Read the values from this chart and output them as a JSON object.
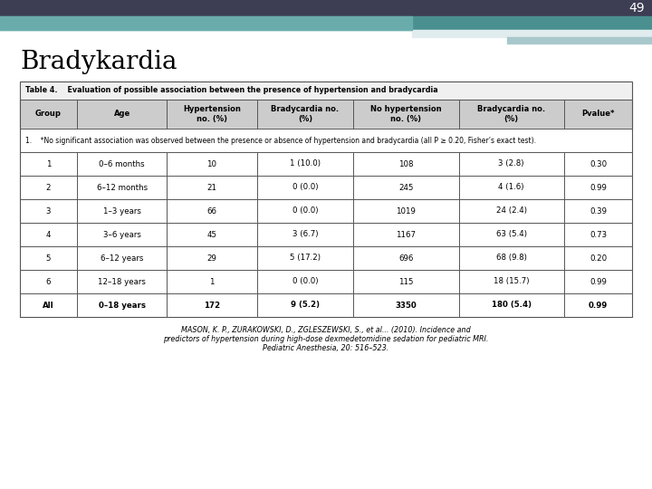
{
  "page_number": "49",
  "title": "Bradykardia",
  "table_title": "Table 4.    Evaluation of possible association between the presence of hypertension and bradycardia",
  "col_headers": [
    "Group",
    "Age",
    "Hypertension\nno. (%)",
    "Bradycardia no.\n(%)",
    "No hypertension\nno. (%)",
    "Bradycardia no.\n(%)",
    "Pvalue*"
  ],
  "footnote_row": "*No significant association was observed between the presence or absence of hypertension and bradycardia (all P ≥ 0.20, Fisher’s exact test).",
  "rows": [
    [
      "1",
      "0–6 months",
      "10",
      "1 (10.0)",
      "108",
      "3 (2.8)",
      "0.30"
    ],
    [
      "2",
      "6–12 months",
      "21",
      "0 (0.0)",
      "245",
      "4 (1.6)",
      "0.99"
    ],
    [
      "3",
      "1–3 years",
      "66",
      "0 (0.0)",
      "1019",
      "24 (2.4)",
      "0.39"
    ],
    [
      "4",
      "3–6 years",
      "45",
      "3 (6.7)",
      "1167",
      "63 (5.4)",
      "0.73"
    ],
    [
      "5",
      "6–12 years",
      "29",
      "5 (17.2)",
      "696",
      "68 (9.8)",
      "0.20"
    ],
    [
      "6",
      "12–18 years",
      "1",
      "0 (0.0)",
      "115",
      "18 (15.7)",
      "0.99"
    ],
    [
      "All",
      "0–18 years",
      "172",
      "9 (5.2)",
      "3350",
      "180 (5.4)",
      "0.99"
    ]
  ],
  "citation_line1": "MASON, K. P., ZURAKOWSKI, D., ZGLESZEWSKI, S., et al... (2010). Incidence and",
  "citation_line2": "predictors of hypertension during high-dose dexmedetomidine sedation for pediatric MRI.",
  "citation_line3": "Pediatric Anesthesia, 20: 516–523.",
  "bg_color": "#ffffff",
  "header_bg": "#cccccc",
  "table_title_bg": "#f0f0f0",
  "border_color": "#555555",
  "title_color": "#000000",
  "bar_navy": "#3d3d54",
  "bar_teal": "#4a9090",
  "bar_teal_left": "#6aacac",
  "bar_light1": "#c8dde0",
  "bar_light2": "#a8c8cc"
}
